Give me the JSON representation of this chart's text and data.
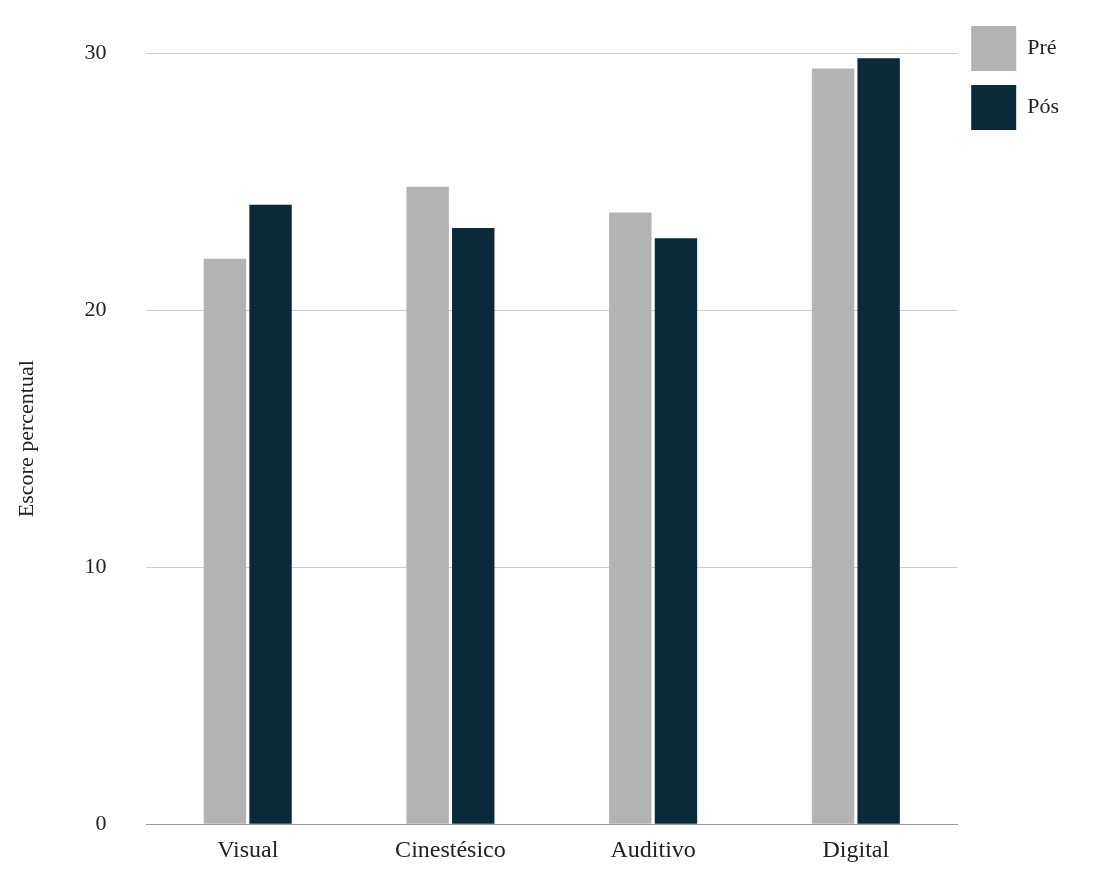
{
  "chart_data": {
    "type": "bar",
    "ylabel": "Escore percentual",
    "categories": [
      "Visual",
      "Cinestésico",
      "Auditivo",
      "Digital"
    ],
    "series": [
      {
        "name": "Pré",
        "color": "#b3b3b3",
        "values": [
          22.0,
          24.8,
          23.8,
          29.4
        ]
      },
      {
        "name": "Pós",
        "color": "#0a2939",
        "values": [
          24.1,
          23.2,
          22.8,
          29.8
        ]
      }
    ],
    "ylim": [
      0,
      30
    ],
    "yticks": [
      0,
      10,
      20,
      30
    ],
    "grid": "y",
    "legend": "top right"
  }
}
